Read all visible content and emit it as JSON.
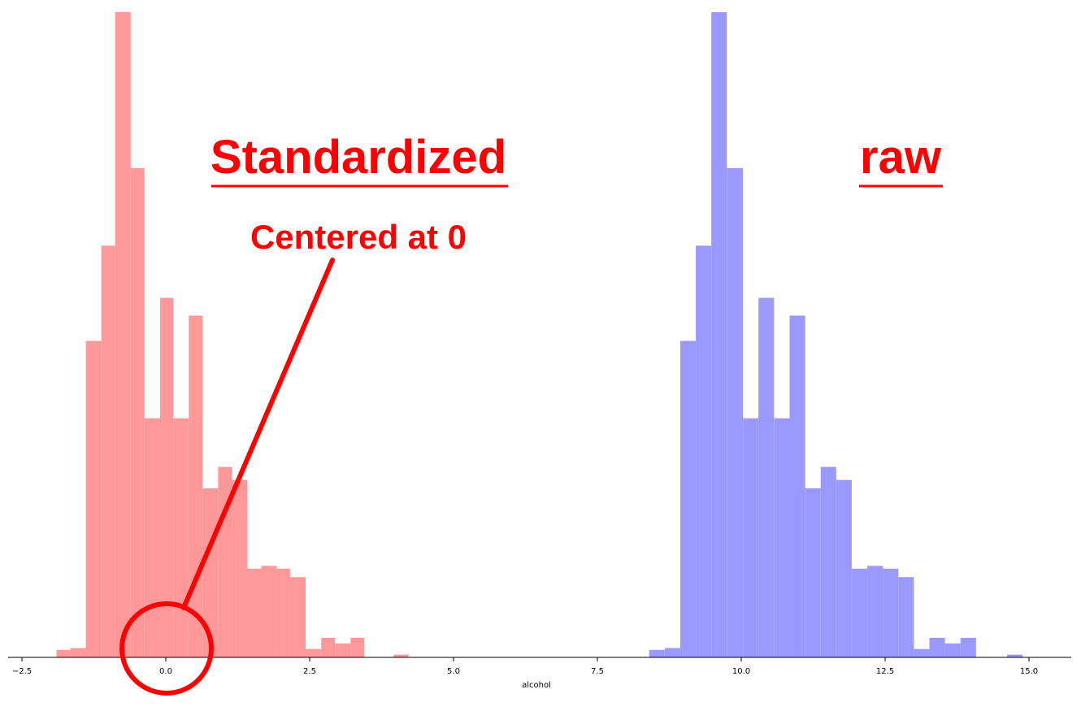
{
  "chart_data": {
    "type": "bar",
    "xlabel": "alcohol",
    "ylabel": "",
    "xlim": [
      -2.5,
      15.0
    ],
    "xticks": [
      "−2.5",
      "0.0",
      "2.5",
      "5.0",
      "7.5",
      "10.0",
      "12.5",
      "15.0"
    ],
    "grid": false,
    "series": [
      {
        "name": "Standardized",
        "color": "#ff9999",
        "bins": [
          {
            "x0": -1.9,
            "x1": -1.66,
            "value": 8
          },
          {
            "x0": -1.66,
            "x1": -1.39,
            "value": 10
          },
          {
            "x0": -1.39,
            "x1": -1.12,
            "value": 339
          },
          {
            "x0": -1.12,
            "x1": -0.88,
            "value": 441
          },
          {
            "x0": -0.88,
            "x1": -0.61,
            "value": 691
          },
          {
            "x0": -0.61,
            "x1": -0.37,
            "value": 524
          },
          {
            "x0": -0.37,
            "x1": -0.1,
            "value": 256
          },
          {
            "x0": -0.1,
            "x1": 0.13,
            "value": 385
          },
          {
            "x0": 0.13,
            "x1": 0.4,
            "value": 256
          },
          {
            "x0": 0.4,
            "x1": 0.64,
            "value": 366
          },
          {
            "x0": 0.64,
            "x1": 0.91,
            "value": 181
          },
          {
            "x0": 0.91,
            "x1": 1.15,
            "value": 204
          },
          {
            "x0": 1.15,
            "x1": 1.42,
            "value": 190
          },
          {
            "x0": 1.42,
            "x1": 1.66,
            "value": 95
          },
          {
            "x0": 1.66,
            "x1": 1.93,
            "value": 98
          },
          {
            "x0": 1.93,
            "x1": 2.16,
            "value": 95
          },
          {
            "x0": 2.16,
            "x1": 2.43,
            "value": 86
          },
          {
            "x0": 2.43,
            "x1": 2.7,
            "value": 9
          },
          {
            "x0": 2.7,
            "x1": 2.94,
            "value": 21
          },
          {
            "x0": 2.94,
            "x1": 3.21,
            "value": 15
          },
          {
            "x0": 3.21,
            "x1": 3.45,
            "value": 21
          },
          {
            "x0": 3.96,
            "x1": 4.22,
            "value": 3
          }
        ]
      },
      {
        "name": "raw",
        "color": "#9999ff",
        "bins": [
          {
            "x0": 8.4,
            "x1": 8.67,
            "value": 8
          },
          {
            "x0": 8.67,
            "x1": 8.94,
            "value": 10
          },
          {
            "x0": 8.94,
            "x1": 9.21,
            "value": 339
          },
          {
            "x0": 9.21,
            "x1": 9.48,
            "value": 441
          },
          {
            "x0": 9.48,
            "x1": 9.75,
            "value": 691
          },
          {
            "x0": 9.75,
            "x1": 10.03,
            "value": 524
          },
          {
            "x0": 10.03,
            "x1": 10.3,
            "value": 256
          },
          {
            "x0": 10.3,
            "x1": 10.57,
            "value": 385
          },
          {
            "x0": 10.57,
            "x1": 10.84,
            "value": 256
          },
          {
            "x0": 10.84,
            "x1": 11.11,
            "value": 366
          },
          {
            "x0": 11.11,
            "x1": 11.38,
            "value": 181
          },
          {
            "x0": 11.38,
            "x1": 11.65,
            "value": 204
          },
          {
            "x0": 11.65,
            "x1": 11.92,
            "value": 190
          },
          {
            "x0": 11.92,
            "x1": 12.19,
            "value": 95
          },
          {
            "x0": 12.19,
            "x1": 12.46,
            "value": 98
          },
          {
            "x0": 12.46,
            "x1": 12.73,
            "value": 95
          },
          {
            "x0": 12.73,
            "x1": 13.0,
            "value": 86
          },
          {
            "x0": 13.0,
            "x1": 13.27,
            "value": 9
          },
          {
            "x0": 13.27,
            "x1": 13.54,
            "value": 21
          },
          {
            "x0": 13.54,
            "x1": 13.81,
            "value": 15
          },
          {
            "x0": 13.81,
            "x1": 14.08,
            "value": 21
          },
          {
            "x0": 14.62,
            "x1": 14.89,
            "value": 3
          }
        ]
      }
    ],
    "annotations": {
      "standardized": "Standardized",
      "raw": "raw",
      "centered": "Centered at 0",
      "annotation_color": "#ff0000"
    }
  }
}
